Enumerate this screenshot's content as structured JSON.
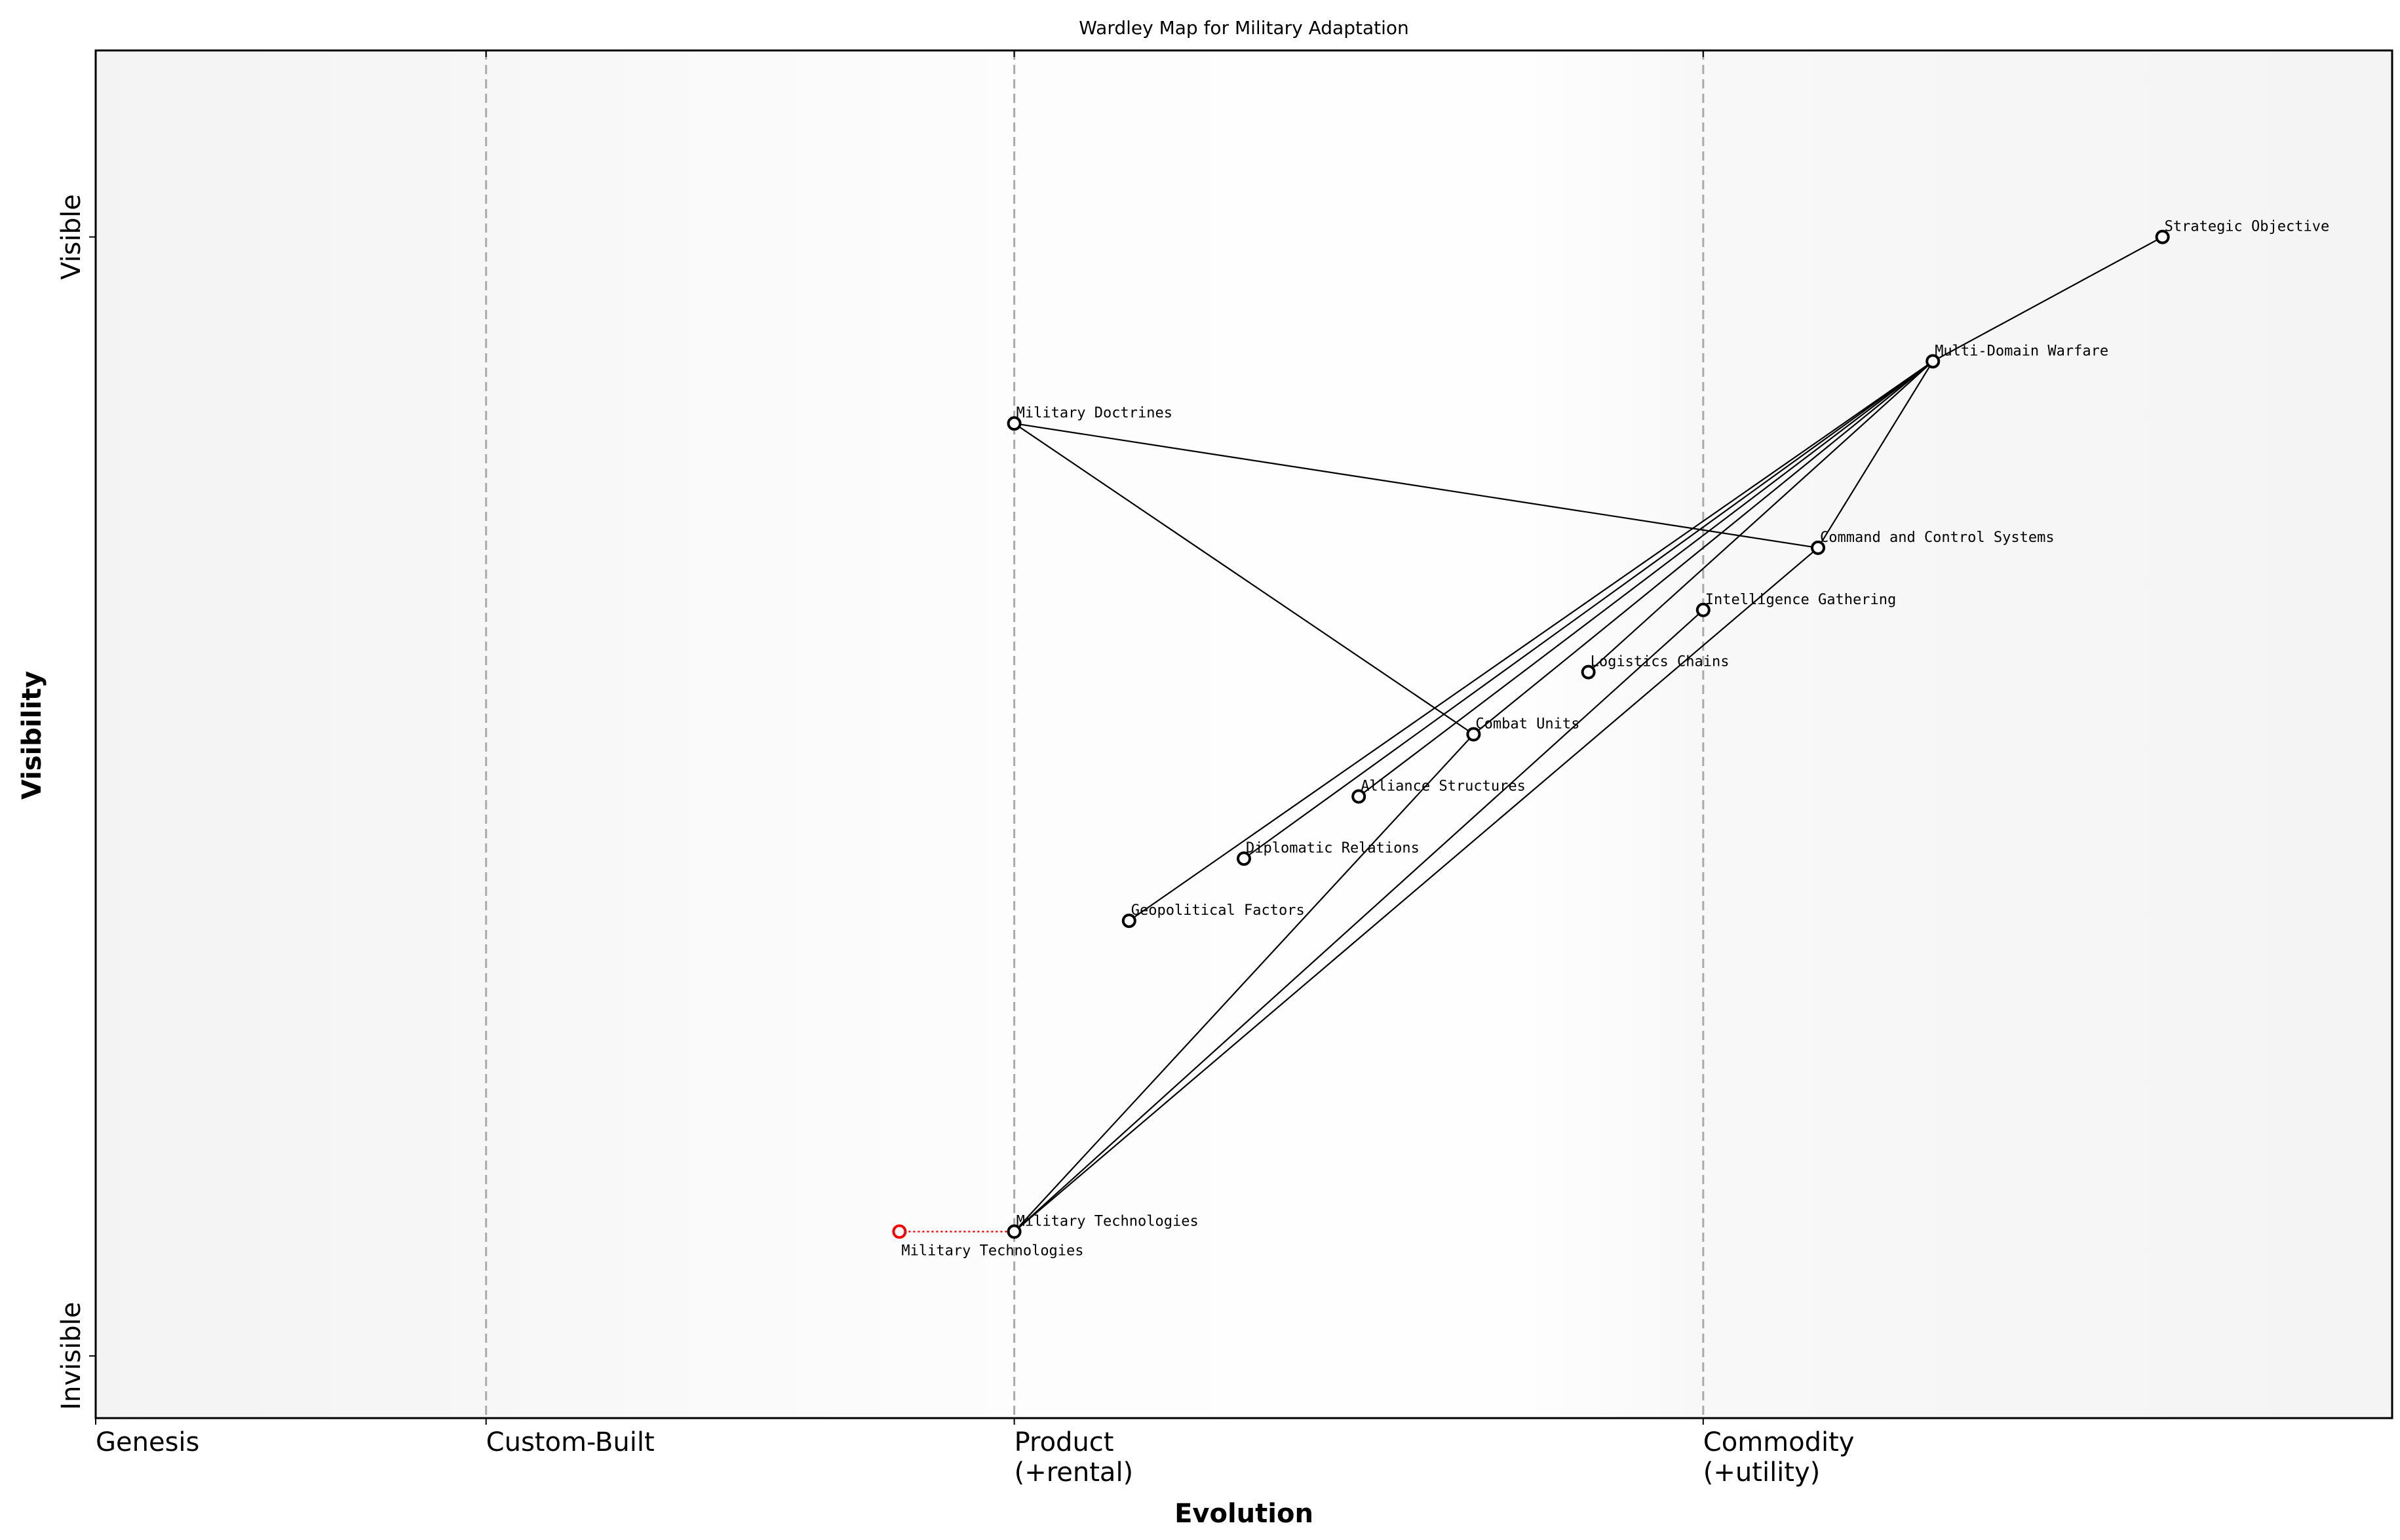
{
  "chart_data": {
    "type": "scatter",
    "title": "Wardley Map for Military Adaptation",
    "xlabel": "Evolution",
    "ylabel": "Visibility",
    "xlim": [
      0,
      1
    ],
    "ylim": [
      0,
      1.1
    ],
    "grid": false,
    "x_ticks": [
      {
        "value": 0,
        "label": "Genesis"
      },
      {
        "value": 0.17,
        "label": "Custom-Built"
      },
      {
        "value": 0.4,
        "label": "Product\n(+rental)"
      },
      {
        "value": 0.7,
        "label": "Commodity\n(+utility)"
      }
    ],
    "y_ticks": [
      {
        "value": 0.05,
        "label": "Invisible"
      },
      {
        "value": 0.95,
        "label": "Visible"
      }
    ],
    "stage_boundaries": [
      0.17,
      0.4,
      0.7
    ],
    "components": [
      {
        "name": "Strategic Objective",
        "x": 0.9,
        "y": 0.95
      },
      {
        "name": "Multi-Domain Warfare",
        "x": 0.8,
        "y": 0.85
      },
      {
        "name": "Military Doctrines",
        "x": 0.4,
        "y": 0.8
      },
      {
        "name": "Command and Control Systems",
        "x": 0.75,
        "y": 0.7
      },
      {
        "name": "Intelligence Gathering",
        "x": 0.7,
        "y": 0.65
      },
      {
        "name": "Logistics Chains",
        "x": 0.65,
        "y": 0.6
      },
      {
        "name": "Combat Units",
        "x": 0.6,
        "y": 0.55
      },
      {
        "name": "Alliance Structures",
        "x": 0.55,
        "y": 0.5
      },
      {
        "name": "Diplomatic Relations",
        "x": 0.5,
        "y": 0.45
      },
      {
        "name": "Geopolitical Factors",
        "x": 0.45,
        "y": 0.4
      },
      {
        "name": "Military Technologies",
        "x": 0.4,
        "y": 0.15
      }
    ],
    "evolved_components": [
      {
        "name": "Military Technologies",
        "x": 0.35,
        "y": 0.15,
        "from": "Military Technologies",
        "color": "#ff0000"
      }
    ],
    "links": [
      [
        "Strategic Objective",
        "Multi-Domain Warfare"
      ],
      [
        "Multi-Domain Warfare",
        "Command and Control Systems"
      ],
      [
        "Multi-Domain Warfare",
        "Logistics Chains"
      ],
      [
        "Multi-Domain Warfare",
        "Combat Units"
      ],
      [
        "Multi-Domain Warfare",
        "Alliance Structures"
      ],
      [
        "Multi-Domain Warfare",
        "Diplomatic Relations"
      ],
      [
        "Multi-Domain Warfare",
        "Geopolitical Factors"
      ],
      [
        "Military Doctrines",
        "Command and Control Systems"
      ],
      [
        "Military Doctrines",
        "Combat Units"
      ],
      [
        "Military Technologies",
        "Combat Units"
      ],
      [
        "Military Technologies",
        "Intelligence Gathering"
      ],
      [
        "Military Technologies",
        "Command and Control Systems"
      ]
    ],
    "colors": {
      "node": "#000000",
      "evolved": "#ff0000",
      "boundary": "#aaaaaa",
      "genesis_bg": "#f3f3f3",
      "product_bg": "#ffffff",
      "commodity_bg": "#f5f5f5"
    }
  }
}
